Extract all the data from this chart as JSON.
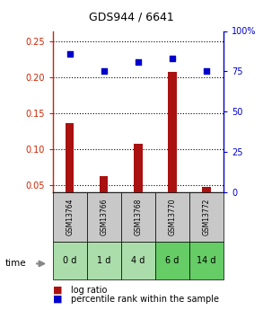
{
  "title": "GDS944 / 6641",
  "samples": [
    "GSM13764",
    "GSM13766",
    "GSM13768",
    "GSM13770",
    "GSM13772"
  ],
  "time_labels": [
    "0 d",
    "1 d",
    "4 d",
    "6 d",
    "14 d"
  ],
  "log_ratio": [
    0.136,
    0.062,
    0.107,
    0.208,
    0.048
  ],
  "percentile_rank": [
    86,
    75,
    81,
    83,
    75
  ],
  "left_ylim": [
    0.04,
    0.265
  ],
  "right_ylim": [
    0,
    100
  ],
  "left_yticks": [
    0.05,
    0.1,
    0.15,
    0.2,
    0.25
  ],
  "left_yticklabels": [
    "0.05",
    "0.10",
    "0.15",
    "0.20",
    "0.25"
  ],
  "right_yticks": [
    0,
    25,
    50,
    75,
    100
  ],
  "right_yticklabels": [
    "0",
    "25",
    "50",
    "75",
    "100%"
  ],
  "bar_color": "#AA1111",
  "marker_color": "#0000CC",
  "grid_color": "#000000",
  "title_color": "#000000",
  "left_axis_color": "#CC2200",
  "right_axis_color": "#0000CC",
  "sample_box_color": "#C8C8C8",
  "time_box_colors": [
    "#AADDAA",
    "#AADDAA",
    "#AADDAA",
    "#66CC66",
    "#66CC66"
  ],
  "background_color": "#FFFFFF",
  "bar_width": 0.25
}
